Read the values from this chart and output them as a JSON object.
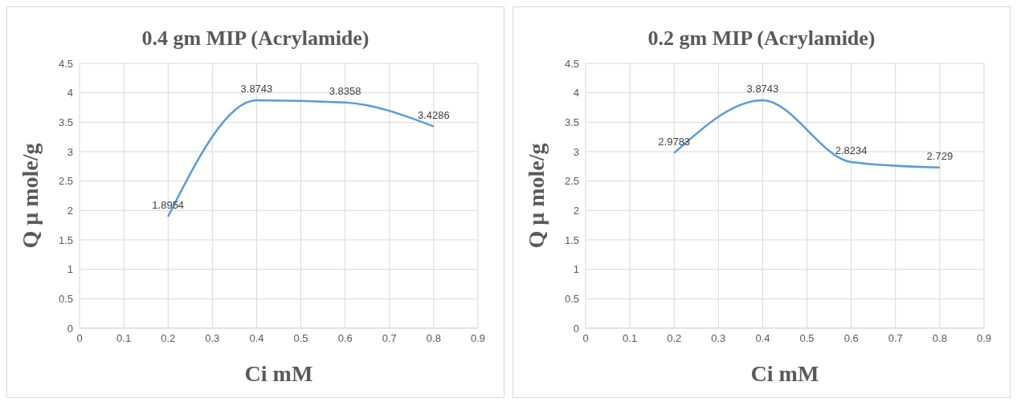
{
  "chart_data": [
    {
      "type": "line",
      "title": "0.4 gm MIP (Acrylamide)",
      "xlabel": "Ci mM",
      "ylabel": "Q μ mole/g",
      "x": [
        0.2,
        0.4,
        0.6,
        0.8
      ],
      "series": [
        {
          "color": "#5b9bd5",
          "values": [
            1.8954,
            3.8743,
            3.8358,
            3.4286
          ]
        }
      ],
      "xlim": [
        0,
        0.9
      ],
      "xticks": [
        0,
        0.1,
        0.2,
        0.3,
        0.4,
        0.5,
        0.6,
        0.7,
        0.8,
        0.9
      ],
      "ylim": [
        0,
        4.5
      ],
      "yticks": [
        0,
        0.5,
        1,
        1.5,
        2,
        2.5,
        3,
        3.5,
        4,
        4.5
      ],
      "grid": true,
      "data_labels": true
    },
    {
      "type": "line",
      "title": "0.2 gm MIP (Acrylamide)",
      "xlabel": "Ci mM",
      "ylabel": "Q μ mole/g",
      "x": [
        0.2,
        0.4,
        0.6,
        0.8
      ],
      "series": [
        {
          "color": "#5b9bd5",
          "values": [
            2.9783,
            3.8743,
            2.8234,
            2.729
          ]
        }
      ],
      "xlim": [
        0,
        0.9
      ],
      "xticks": [
        0,
        0.1,
        0.2,
        0.3,
        0.4,
        0.5,
        0.6,
        0.7,
        0.8,
        0.9
      ],
      "ylim": [
        0,
        4.5
      ],
      "yticks": [
        0,
        0.5,
        1,
        1.5,
        2,
        2.5,
        3,
        3.5,
        4,
        4.5
      ],
      "grid": true,
      "data_labels": true
    }
  ]
}
